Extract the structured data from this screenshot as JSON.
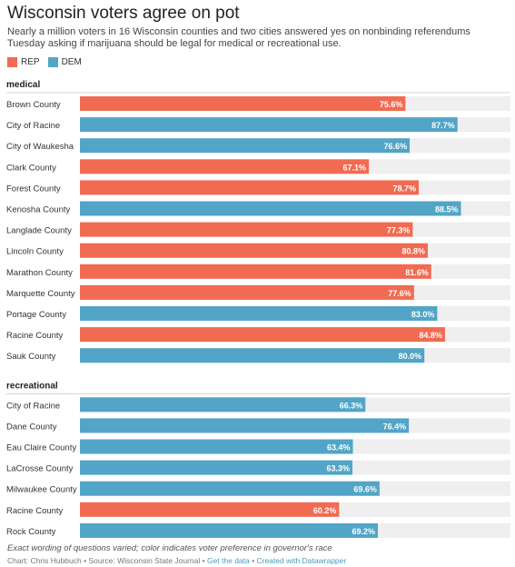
{
  "title": "Wisconsin voters agree on pot",
  "subtitle": "Nearly a million voters in 16 Wisconsin counties and two cities answered yes on nonbinding referendums Tuesday asking if marijuana should be legal for medical or recreational use.",
  "colors": {
    "REP": "#f06b52",
    "DEM": "#52a5c6",
    "track": "#efefef"
  },
  "legend": [
    {
      "key": "REP",
      "label": "REP"
    },
    {
      "key": "DEM",
      "label": "DEM"
    }
  ],
  "chart_data": {
    "type": "bar",
    "orientation": "horizontal",
    "xlim": [
      0,
      100
    ],
    "value_suffix": "%",
    "groups": [
      {
        "name": "medical",
        "bars": [
          {
            "label": "Brown County",
            "value": 75.6,
            "party": "REP"
          },
          {
            "label": "City of Racine",
            "value": 87.7,
            "party": "DEM"
          },
          {
            "label": "City of Waukesha",
            "value": 76.6,
            "party": "DEM"
          },
          {
            "label": "Clark County",
            "value": 67.1,
            "party": "REP"
          },
          {
            "label": "Forest County",
            "value": 78.7,
            "party": "REP"
          },
          {
            "label": "Kenosha County",
            "value": 88.5,
            "party": "DEM"
          },
          {
            "label": "Langlade County",
            "value": 77.3,
            "party": "REP"
          },
          {
            "label": "Lincoln County",
            "value": 80.8,
            "party": "REP"
          },
          {
            "label": "Marathon County",
            "value": 81.6,
            "party": "REP"
          },
          {
            "label": "Marquette County",
            "value": 77.6,
            "party": "REP"
          },
          {
            "label": "Portage County",
            "value": 83.0,
            "party": "DEM"
          },
          {
            "label": "Racine County",
            "value": 84.8,
            "party": "REP"
          },
          {
            "label": "Sauk County",
            "value": 80.0,
            "party": "DEM"
          }
        ]
      },
      {
        "name": "recreational",
        "bars": [
          {
            "label": "City of Racine",
            "value": 66.3,
            "party": "DEM"
          },
          {
            "label": "Dane County",
            "value": 76.4,
            "party": "DEM"
          },
          {
            "label": "Eau Claire County",
            "value": 63.4,
            "party": "DEM"
          },
          {
            "label": "LaCrosse County",
            "value": 63.3,
            "party": "DEM"
          },
          {
            "label": "Milwaukee County",
            "value": 69.6,
            "party": "DEM"
          },
          {
            "label": "Racine County",
            "value": 60.2,
            "party": "REP"
          },
          {
            "label": "Rock County",
            "value": 69.2,
            "party": "DEM"
          }
        ]
      }
    ]
  },
  "note": "Exact wording of questions varied; color indicates voter preference in governor's race",
  "footer": {
    "credit": "Chart: Chris Hubbuch • Source: Wisconsin State Journal • ",
    "get_data": "Get the data",
    "separator": " • ",
    "created_with": "Created with Datawrapper"
  }
}
